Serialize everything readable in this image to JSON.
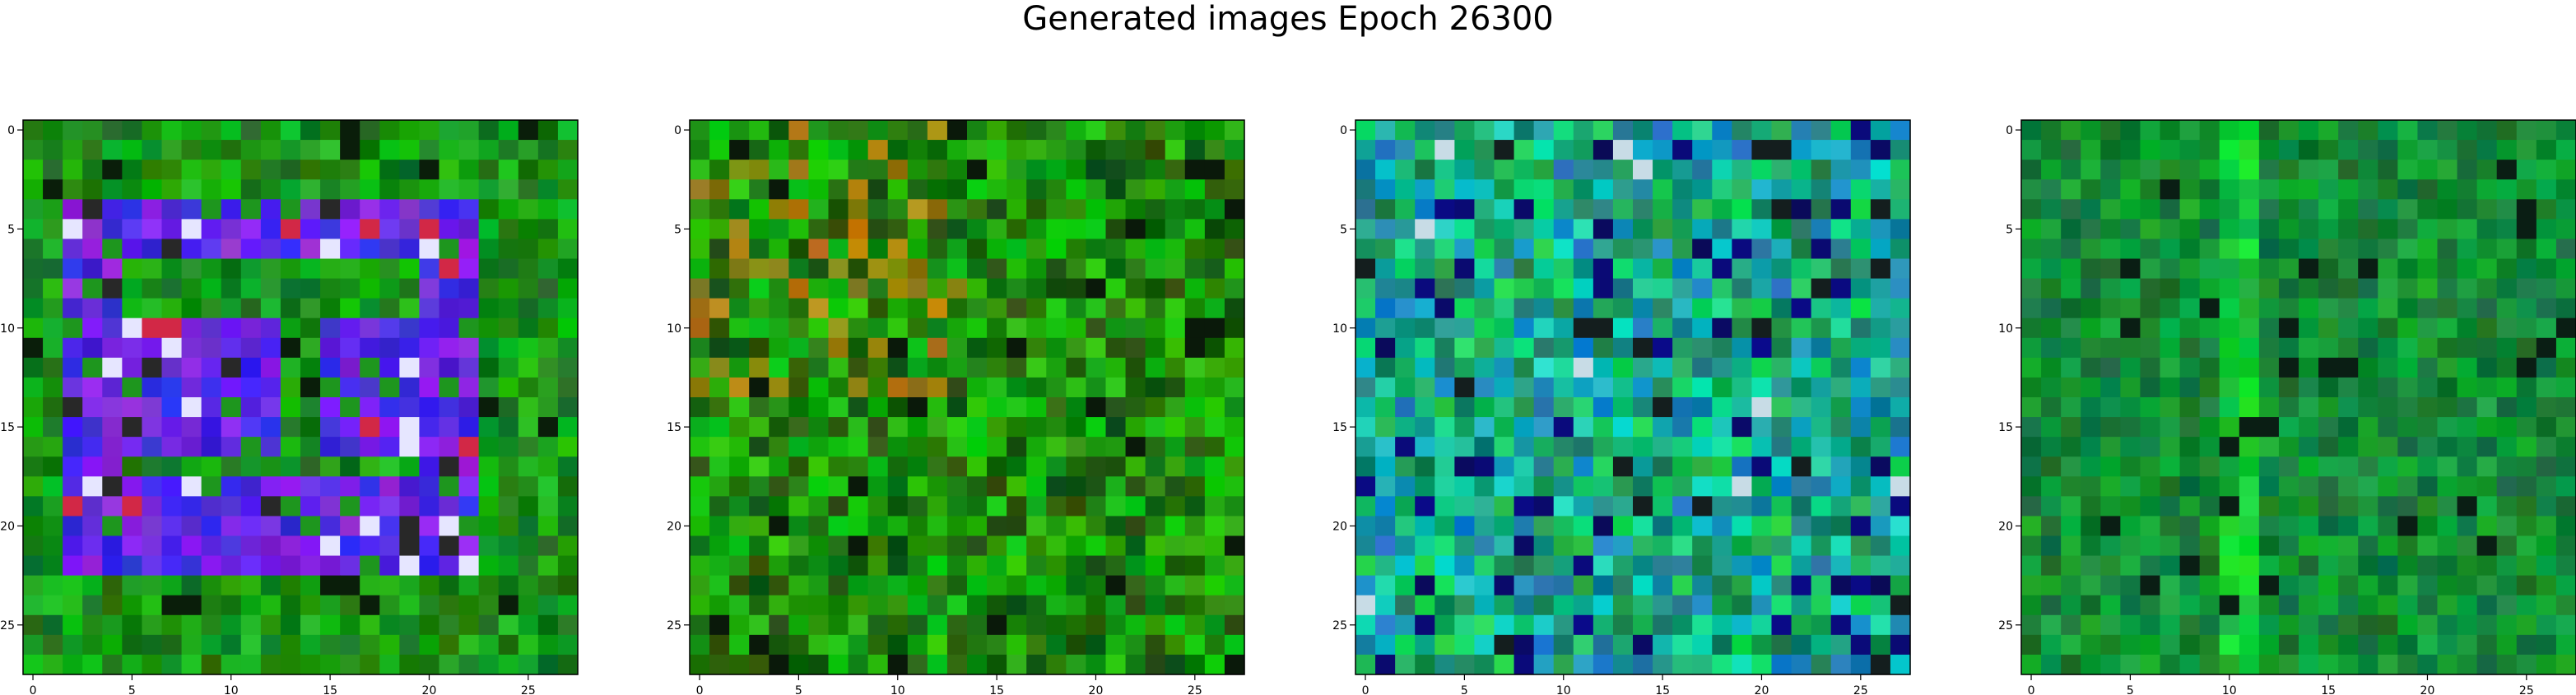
{
  "title": "Generated images Epoch 26300",
  "chart_data": [
    {
      "type": "heatmap",
      "image_size": 28,
      "xticks": [
        0,
        5,
        10,
        15,
        20,
        25
      ],
      "yticks": [
        0,
        5,
        10,
        15,
        20,
        25
      ],
      "dominant_colors": [
        "#1e8a1e",
        "#2a1cf0",
        "#7a20e8",
        "#e8e8ff",
        "#d02040"
      ],
      "description_content": "green field with a bright blue-purple rectangular frame pattern"
    },
    {
      "type": "heatmap",
      "image_size": 28,
      "xticks": [
        0,
        5,
        10,
        15,
        20,
        25
      ],
      "yticks": [
        0,
        5,
        10,
        15,
        20,
        25
      ],
      "dominant_colors": [
        "#1e8a1e",
        "#4a7a10",
        "#8a6a10",
        "#a02020",
        "#0a2a0a"
      ]
    },
    {
      "type": "heatmap",
      "image_size": 28,
      "xticks": [
        0,
        5,
        10,
        15,
        20,
        25
      ],
      "yticks": [
        0,
        5,
        10,
        15,
        20,
        25
      ],
      "dominant_colors": [
        "#1aa060",
        "#20c0b0",
        "#1060a0",
        "#0a3a2a",
        "#30e080"
      ]
    },
    {
      "type": "heatmap",
      "image_size": 28,
      "xticks": [
        0,
        5,
        10,
        15,
        20,
        25
      ],
      "yticks": [
        0,
        5,
        10,
        15,
        20,
        25
      ],
      "dominant_colors": [
        "#1a8a30",
        "#2ab050",
        "#0a3a1a",
        "#30d070",
        "#0a1a30"
      ]
    }
  ]
}
